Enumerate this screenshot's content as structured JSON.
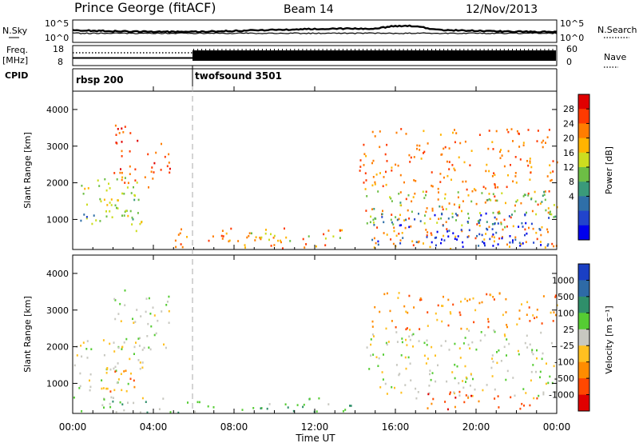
{
  "header": {
    "title": "Prince George (fitACF)",
    "beam": "Beam 14",
    "date": "12/Nov/2013"
  },
  "strip": {
    "nsky_label": "N.Sky",
    "nsky_ticks": [
      "10^5",
      "10^0"
    ],
    "nsearch_label": "N.Search",
    "freq_label": "Freq.",
    "freq_unit": "[MHz]",
    "freq_ticks": [
      "18",
      "8"
    ],
    "nave_ticks": [
      "60",
      "0"
    ],
    "nave_label": "Nave",
    "cpid_label": "CPID",
    "programs": [
      {
        "name": "rbsp 200",
        "start_hour": 0,
        "end_hour": 6
      },
      {
        "name": "twofsound 3501",
        "start_hour": 6,
        "end_hour": 24
      }
    ]
  },
  "colorbars": {
    "power": {
      "label": "Power [dB]",
      "ticks": [
        "28",
        "24",
        "20",
        "16",
        "12",
        "8",
        "4"
      ],
      "colors": [
        "#e00000",
        "#ff3a00",
        "#ff7d00",
        "#ffb400",
        "#ccdd20",
        "#6dbe45",
        "#3a9a7a",
        "#2f6fa8",
        "#2244cc",
        "#0000ee"
      ]
    },
    "velocity": {
      "label": "Velocity [m s⁻¹]",
      "ticks": [
        "1000",
        "500",
        "100",
        "25",
        "-25",
        "-100",
        "-500",
        "-1000"
      ],
      "colors": [
        "#1a3fc4",
        "#2e6aa6",
        "#2f8f6a",
        "#55cc33",
        "#c8c8c0",
        "#ffc020",
        "#ff8c00",
        "#ff4800",
        "#e00000"
      ]
    }
  },
  "chart_data": [
    {
      "type": "heatmap",
      "panel": "power",
      "ylabel": "Slant Range [km]",
      "ylim": [
        180,
        4500
      ],
      "xlim": [
        0,
        24
      ],
      "yticks": [
        "1000",
        "2000",
        "3000",
        "4000"
      ],
      "xticks": [
        "00:00",
        "04:00",
        "08:00",
        "12:00",
        "16:00",
        "20:00",
        "00:00"
      ],
      "scale_label": "Power [dB]",
      "scatter_regions": [
        {
          "t": [
            0.2,
            3.4
          ],
          "r": [
            700,
            2300
          ],
          "level": 4
        },
        {
          "t": [
            0.3,
            1.5
          ],
          "r": [
            850,
            1200
          ],
          "level": 7
        },
        {
          "t": [
            1.5,
            3.3
          ],
          "r": [
            1000,
            1800
          ],
          "level": 5
        },
        {
          "t": [
            2.0,
            4.8
          ],
          "r": [
            1900,
            3600
          ],
          "level": 1
        },
        {
          "t": [
            5.0,
            13.8
          ],
          "r": [
            200,
            800
          ],
          "level": 2
        },
        {
          "t": [
            8.0,
            13.8
          ],
          "r": [
            420,
            650
          ],
          "level": 4
        },
        {
          "t": [
            14.2,
            24
          ],
          "r": [
            200,
            3500
          ],
          "level": 2
        },
        {
          "t": [
            14.5,
            24
          ],
          "r": [
            800,
            1800
          ],
          "level": 5
        },
        {
          "t": [
            14.8,
            23.6
          ],
          "r": [
            300,
            1200
          ],
          "level": 8
        },
        {
          "t": [
            17.5,
            22.5
          ],
          "r": [
            250,
            800
          ],
          "level": 9
        }
      ]
    },
    {
      "type": "heatmap",
      "panel": "velocity",
      "ylabel": "Slant Range [km]",
      "xlabel": "Time UT",
      "ylim": [
        180,
        4500
      ],
      "xlim": [
        0,
        24
      ],
      "yticks": [
        "1000",
        "2000",
        "3000",
        "4000"
      ],
      "xticks": [
        "00:00",
        "04:00",
        "08:00",
        "12:00",
        "16:00",
        "20:00",
        "00:00"
      ],
      "scale_label": "Velocity [m s⁻¹]",
      "scatter_regions": [
        {
          "t": [
            0,
            3.5
          ],
          "r": [
            600,
            2300
          ],
          "level": 4
        },
        {
          "t": [
            1.6,
            3.2
          ],
          "r": [
            800,
            1800
          ],
          "level": 6
        },
        {
          "t": [
            2.0,
            4.8
          ],
          "r": [
            1900,
            3600
          ],
          "level": 4
        },
        {
          "t": [
            0,
            14
          ],
          "r": [
            180,
            650
          ],
          "level": 3
        },
        {
          "t": [
            14.5,
            24
          ],
          "r": [
            600,
            2500
          ],
          "level": 4
        },
        {
          "t": [
            14.5,
            24
          ],
          "r": [
            2500,
            3500
          ],
          "level": 6
        },
        {
          "t": [
            17.5,
            23
          ],
          "r": [
            300,
            800
          ],
          "level": 7
        }
      ]
    }
  ]
}
